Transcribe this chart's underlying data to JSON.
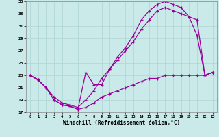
{
  "xlabel": "Windchill (Refroidissement éolien,°C)",
  "bg_color": "#caeaea",
  "grid_color": "#b0d8d8",
  "line_color": "#990099",
  "xlim": [
    -0.5,
    23.5
  ],
  "ylim": [
    17,
    35
  ],
  "yticks": [
    17,
    19,
    21,
    23,
    25,
    27,
    29,
    31,
    33,
    35
  ],
  "xticks": [
    0,
    1,
    2,
    3,
    4,
    5,
    6,
    7,
    8,
    9,
    10,
    11,
    12,
    13,
    14,
    15,
    16,
    17,
    18,
    19,
    20,
    21,
    22,
    23
  ],
  "line1_x": [
    0,
    1,
    2,
    3,
    4,
    5,
    6,
    7,
    8,
    9,
    10,
    11,
    12,
    13,
    14,
    15,
    16,
    17,
    18,
    19,
    20,
    21,
    22,
    23
  ],
  "line1_y": [
    23.0,
    22.2,
    21.0,
    19.0,
    18.2,
    18.0,
    17.5,
    23.5,
    21.5,
    21.5,
    24.0,
    26.0,
    27.5,
    29.5,
    32.0,
    33.5,
    34.5,
    35.0,
    34.5,
    34.0,
    32.5,
    29.5,
    23.0,
    23.5
  ],
  "line2_x": [
    0,
    1,
    2,
    3,
    4,
    5,
    6,
    7,
    8,
    9,
    10,
    11,
    12,
    13,
    14,
    15,
    16,
    17,
    18,
    19,
    20,
    21,
    22,
    23
  ],
  "line2_y": [
    23.0,
    22.3,
    21.0,
    19.5,
    18.5,
    18.2,
    17.8,
    19.0,
    20.5,
    22.5,
    24.0,
    25.5,
    27.0,
    28.5,
    30.5,
    32.0,
    33.5,
    34.0,
    33.5,
    33.0,
    32.5,
    32.0,
    23.0,
    23.5
  ],
  "line3_x": [
    0,
    1,
    2,
    3,
    4,
    5,
    6,
    7,
    8,
    9,
    10,
    11,
    12,
    13,
    14,
    15,
    16,
    17,
    18,
    19,
    20,
    21,
    22,
    23
  ],
  "line3_y": [
    23.0,
    22.3,
    21.0,
    19.0,
    18.2,
    18.0,
    17.5,
    17.8,
    18.5,
    19.5,
    20.0,
    20.5,
    21.0,
    21.5,
    22.0,
    22.5,
    22.5,
    23.0,
    23.0,
    23.0,
    23.0,
    23.0,
    23.0,
    23.5
  ]
}
